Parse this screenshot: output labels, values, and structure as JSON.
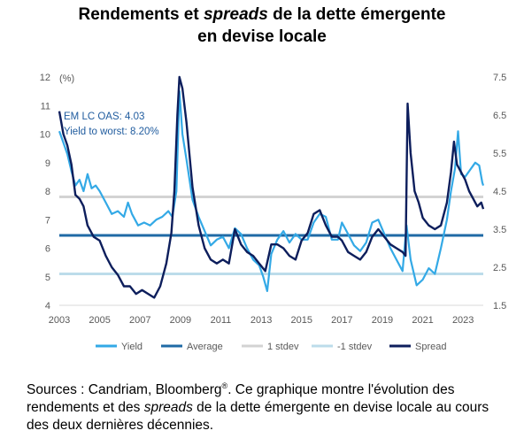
{
  "title": {
    "line1_a": "Rendements et ",
    "line1_em": "spreads",
    "line1_b": " de la dette émergente",
    "line2": "en devise locale"
  },
  "caption": {
    "part1": "Sources : Candriam, Bloomberg",
    "reg": "®",
    "part2": ". Ce graphique montre l'évolution des rendements et des ",
    "em": "spreads",
    "part3": " de la dette émergente en devise locale au cours des deux dernières décennies."
  },
  "chart_data": {
    "type": "line",
    "unit_label": "(%)",
    "colors": {
      "yield": "#33a9e6",
      "average": "#1f6aa5",
      "plus_1_stdev": "#d3d3d3",
      "minus_1_stdev": "#bcdcea",
      "spread": "#0d1e5c"
    },
    "y_left": {
      "min": 4,
      "max": 12,
      "ticks": [
        "4",
        "5",
        "6",
        "7",
        "8",
        "9",
        "10",
        "11",
        "12"
      ]
    },
    "y_right": {
      "min": 1.5,
      "max": 7.5,
      "ticks": [
        "1.5",
        "2.5",
        "3.5",
        "4.5",
        "5.5",
        "6.5",
        "7.5"
      ]
    },
    "x": {
      "min": 2003,
      "max": 2024,
      "ticks": [
        "2003",
        "2005",
        "2007",
        "2009",
        "2011",
        "2013",
        "2015",
        "2017",
        "2019",
        "2021",
        "2023"
      ]
    },
    "annotations": [
      "EM LC OAS: 4.03",
      "Yield to worst: 8.20%"
    ],
    "legend": [
      "Yield",
      "Average",
      "1 stdev",
      "-1 stdev",
      "Spread"
    ],
    "series": [
      {
        "name": "Yield",
        "axis": "left",
        "points": [
          [
            2003.0,
            10.1
          ],
          [
            2003.2,
            9.7
          ],
          [
            2003.4,
            9.3
          ],
          [
            2003.6,
            8.7
          ],
          [
            2003.8,
            8.2
          ],
          [
            2004.0,
            8.4
          ],
          [
            2004.2,
            8.0
          ],
          [
            2004.4,
            8.6
          ],
          [
            2004.6,
            8.1
          ],
          [
            2004.8,
            8.2
          ],
          [
            2005.0,
            8.0
          ],
          [
            2005.3,
            7.6
          ],
          [
            2005.6,
            7.2
          ],
          [
            2005.9,
            7.3
          ],
          [
            2006.2,
            7.1
          ],
          [
            2006.4,
            7.6
          ],
          [
            2006.6,
            7.2
          ],
          [
            2006.9,
            6.8
          ],
          [
            2007.2,
            6.9
          ],
          [
            2007.5,
            6.8
          ],
          [
            2007.8,
            7.0
          ],
          [
            2008.1,
            7.1
          ],
          [
            2008.4,
            7.3
          ],
          [
            2008.6,
            7.1
          ],
          [
            2008.8,
            8.0
          ],
          [
            2008.95,
            11.5
          ],
          [
            2009.1,
            10.0
          ],
          [
            2009.3,
            9.1
          ],
          [
            2009.6,
            7.7
          ],
          [
            2009.9,
            7.1
          ],
          [
            2010.2,
            6.6
          ],
          [
            2010.5,
            6.1
          ],
          [
            2010.8,
            6.3
          ],
          [
            2011.1,
            6.4
          ],
          [
            2011.4,
            6.0
          ],
          [
            2011.7,
            6.7
          ],
          [
            2012.0,
            6.5
          ],
          [
            2012.3,
            6.0
          ],
          [
            2012.6,
            5.6
          ],
          [
            2012.9,
            5.4
          ],
          [
            2013.1,
            5.0
          ],
          [
            2013.3,
            4.5
          ],
          [
            2013.5,
            5.8
          ],
          [
            2013.8,
            6.3
          ],
          [
            2014.1,
            6.6
          ],
          [
            2014.4,
            6.2
          ],
          [
            2014.7,
            6.5
          ],
          [
            2015.0,
            6.3
          ],
          [
            2015.3,
            6.3
          ],
          [
            2015.6,
            6.9
          ],
          [
            2015.9,
            7.2
          ],
          [
            2016.2,
            7.1
          ],
          [
            2016.5,
            6.3
          ],
          [
            2016.8,
            6.3
          ],
          [
            2017.0,
            6.9
          ],
          [
            2017.3,
            6.5
          ],
          [
            2017.6,
            6.1
          ],
          [
            2017.9,
            5.9
          ],
          [
            2018.2,
            6.2
          ],
          [
            2018.5,
            6.9
          ],
          [
            2018.8,
            7.0
          ],
          [
            2019.1,
            6.5
          ],
          [
            2019.4,
            6.0
          ],
          [
            2019.7,
            5.6
          ],
          [
            2020.0,
            5.2
          ],
          [
            2020.2,
            6.8
          ],
          [
            2020.4,
            5.6
          ],
          [
            2020.7,
            4.7
          ],
          [
            2021.0,
            4.9
          ],
          [
            2021.3,
            5.3
          ],
          [
            2021.6,
            5.1
          ],
          [
            2021.9,
            6.0
          ],
          [
            2022.2,
            7.0
          ],
          [
            2022.4,
            8.0
          ],
          [
            2022.6,
            8.8
          ],
          [
            2022.75,
            10.1
          ],
          [
            2022.9,
            8.6
          ],
          [
            2023.1,
            8.5
          ],
          [
            2023.4,
            8.8
          ],
          [
            2023.6,
            9.0
          ],
          [
            2023.8,
            8.9
          ],
          [
            2023.95,
            8.3
          ],
          [
            2024.0,
            8.2
          ]
        ]
      },
      {
        "name": "Spread",
        "axis": "right",
        "points": [
          [
            2003.0,
            6.6
          ],
          [
            2003.2,
            6.0
          ],
          [
            2003.4,
            5.7
          ],
          [
            2003.6,
            5.2
          ],
          [
            2003.8,
            4.4
          ],
          [
            2004.0,
            4.3
          ],
          [
            2004.2,
            4.1
          ],
          [
            2004.4,
            3.6
          ],
          [
            2004.7,
            3.3
          ],
          [
            2005.0,
            3.2
          ],
          [
            2005.3,
            2.8
          ],
          [
            2005.6,
            2.5
          ],
          [
            2005.9,
            2.3
          ],
          [
            2006.2,
            2.0
          ],
          [
            2006.5,
            2.0
          ],
          [
            2006.8,
            1.8
          ],
          [
            2007.1,
            1.9
          ],
          [
            2007.4,
            1.8
          ],
          [
            2007.7,
            1.7
          ],
          [
            2008.0,
            2.0
          ],
          [
            2008.3,
            2.6
          ],
          [
            2008.55,
            3.4
          ],
          [
            2008.7,
            4.5
          ],
          [
            2008.85,
            6.5
          ],
          [
            2008.95,
            7.5
          ],
          [
            2009.1,
            7.2
          ],
          [
            2009.3,
            6.3
          ],
          [
            2009.6,
            4.6
          ],
          [
            2009.9,
            3.6
          ],
          [
            2010.2,
            3.0
          ],
          [
            2010.5,
            2.7
          ],
          [
            2010.8,
            2.6
          ],
          [
            2011.1,
            2.7
          ],
          [
            2011.4,
            2.6
          ],
          [
            2011.7,
            3.5
          ],
          [
            2012.0,
            3.1
          ],
          [
            2012.3,
            2.9
          ],
          [
            2012.6,
            2.8
          ],
          [
            2012.9,
            2.6
          ],
          [
            2013.2,
            2.4
          ],
          [
            2013.5,
            3.1
          ],
          [
            2013.8,
            3.1
          ],
          [
            2014.1,
            3.0
          ],
          [
            2014.4,
            2.8
          ],
          [
            2014.7,
            2.7
          ],
          [
            2015.0,
            3.2
          ],
          [
            2015.3,
            3.4
          ],
          [
            2015.6,
            3.9
          ],
          [
            2015.9,
            4.0
          ],
          [
            2016.2,
            3.6
          ],
          [
            2016.5,
            3.3
          ],
          [
            2016.8,
            3.3
          ],
          [
            2017.0,
            3.2
          ],
          [
            2017.3,
            2.9
          ],
          [
            2017.6,
            2.8
          ],
          [
            2017.9,
            2.7
          ],
          [
            2018.2,
            2.9
          ],
          [
            2018.5,
            3.3
          ],
          [
            2018.8,
            3.5
          ],
          [
            2019.1,
            3.3
          ],
          [
            2019.4,
            3.1
          ],
          [
            2019.7,
            3.0
          ],
          [
            2020.0,
            2.9
          ],
          [
            2020.15,
            2.8
          ],
          [
            2020.25,
            6.8
          ],
          [
            2020.4,
            5.5
          ],
          [
            2020.6,
            4.5
          ],
          [
            2020.8,
            4.2
          ],
          [
            2021.0,
            3.8
          ],
          [
            2021.3,
            3.6
          ],
          [
            2021.6,
            3.5
          ],
          [
            2021.9,
            3.6
          ],
          [
            2022.2,
            4.2
          ],
          [
            2022.4,
            5.0
          ],
          [
            2022.55,
            5.8
          ],
          [
            2022.7,
            5.2
          ],
          [
            2022.9,
            5.0
          ],
          [
            2023.1,
            4.8
          ],
          [
            2023.3,
            4.5
          ],
          [
            2023.5,
            4.3
          ],
          [
            2023.7,
            4.1
          ],
          [
            2023.9,
            4.2
          ],
          [
            2024.0,
            4.03
          ]
        ]
      }
    ],
    "reference_lines": [
      {
        "name": "Average",
        "axis": "left",
        "value": 6.45
      },
      {
        "name": "1 stdev",
        "axis": "left",
        "value": 7.8
      },
      {
        "name": "-1 stdev",
        "axis": "left",
        "value": 5.1
      }
    ]
  }
}
